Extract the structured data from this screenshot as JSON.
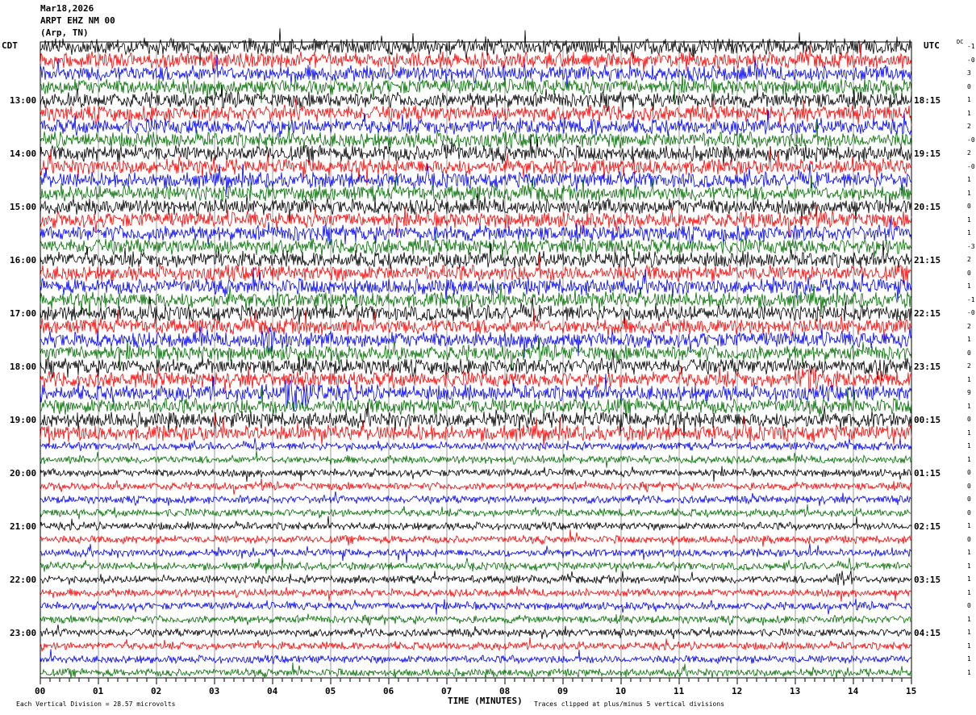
{
  "header": {
    "date": "Mar18,2026",
    "station": "ARPT EHZ NM 00",
    "location": "(Arp, TN)"
  },
  "left_tz": "CDT",
  "right_tz": "UTC",
  "dc_label": "DC",
  "chart_data": {
    "type": "line",
    "subtype": "helicorder",
    "xlabel": "TIME (MINUTES)",
    "xlim": [
      0,
      15
    ],
    "x_ticks": [
      "00",
      "01",
      "02",
      "03",
      "04",
      "05",
      "06",
      "07",
      "08",
      "09",
      "10",
      "11",
      "12",
      "13",
      "14",
      "15"
    ],
    "trace_colors": [
      "#000000",
      "#ff0000",
      "#0000ff",
      "#007000"
    ],
    "left_hour_labels": [
      "13:00",
      "14:00",
      "15:00",
      "16:00",
      "17:00",
      "18:00",
      "19:00",
      "20:00",
      "21:00",
      "22:00",
      "23:00"
    ],
    "right_hour_labels": [
      "18:15",
      "19:15",
      "20:15",
      "21:15",
      "22:15",
      "23:15",
      "00:15",
      "01:15",
      "02:15",
      "03:15",
      "04:15"
    ],
    "dc_offsets": [
      "-1",
      "-0",
      "3",
      "0",
      "1",
      "1",
      "2",
      "-0",
      "2",
      "-0",
      "1",
      "1",
      "0",
      "1",
      "1",
      "-3",
      "2",
      "0",
      "1",
      "-1",
      "-0",
      "2",
      "1",
      "0",
      "2",
      "1",
      "9",
      "1",
      "0",
      "1",
      "1",
      "1",
      "0",
      "0",
      "0",
      "0",
      "1",
      "0",
      "1",
      "1",
      "1",
      "1",
      "0",
      "1",
      "1",
      "1",
      "1",
      "1"
    ],
    "events": [
      {
        "trace": 2,
        "start_min": 11.8,
        "end_min": 13.6,
        "amplitude_div": 3
      },
      {
        "trace": 3,
        "start_min": 3.3,
        "end_min": 3.6,
        "amplitude_div": 3
      },
      {
        "trace": 5,
        "start_min": 9.3,
        "end_min": 9.8,
        "amplitude_div": 2
      },
      {
        "trace": 5,
        "start_min": 12.4,
        "end_min": 13.0,
        "amplitude_div": 2
      },
      {
        "trace": 6,
        "start_min": 9.4,
        "end_min": 10.6,
        "amplitude_div": 3.5
      },
      {
        "trace": 8,
        "start_min": 5.9,
        "end_min": 6.5,
        "amplitude_div": 3
      },
      {
        "trace": 8,
        "start_min": 6.9,
        "end_min": 7.8,
        "amplitude_div": 5
      },
      {
        "trace": 12,
        "start_min": 11.8,
        "end_min": 12.5,
        "amplitude_div": 3
      },
      {
        "trace": 12,
        "start_min": 14.4,
        "end_min": 15,
        "amplitude_div": 3
      },
      {
        "trace": 13,
        "start_min": 12.2,
        "end_min": 13.3,
        "amplitude_div": 4
      },
      {
        "trace": 14,
        "start_min": 4.3,
        "end_min": 5.3,
        "amplitude_div": 3
      },
      {
        "trace": 16,
        "start_min": 10.3,
        "end_min": 11.0,
        "amplitude_div": 2
      },
      {
        "trace": 17,
        "start_min": 7.0,
        "end_min": 7.4,
        "amplitude_div": 2
      },
      {
        "trace": 22,
        "start_min": 3.8,
        "end_min": 5.2,
        "amplitude_div": 5
      },
      {
        "trace": 24,
        "start_min": 14.4,
        "end_min": 15,
        "amplitude_div": 6
      },
      {
        "trace": 25,
        "start_min": 13.0,
        "end_min": 15,
        "amplitude_div": 5
      },
      {
        "trace": 25,
        "start_min": 5.5,
        "end_min": 6.3,
        "amplitude_div": 2
      },
      {
        "trace": 26,
        "start_min": 4.2,
        "end_min": 5.6,
        "amplitude_div": 8
      },
      {
        "trace": 26,
        "start_min": 0.0,
        "end_min": 0.3,
        "amplitude_div": 4
      },
      {
        "trace": 28,
        "start_min": 9.8,
        "end_min": 10.3,
        "amplitude_div": 3
      },
      {
        "trace": 29,
        "start_min": 6.5,
        "end_min": 7.0,
        "amplitude_div": 4
      },
      {
        "trace": 40,
        "start_min": 13.7,
        "end_min": 14.4,
        "amplitude_div": 4
      }
    ]
  },
  "footer": {
    "scale": "Each Vertical Division =   28.57 microvolts",
    "clip": "Traces clipped at plus/minus 5 vertical divisions"
  }
}
